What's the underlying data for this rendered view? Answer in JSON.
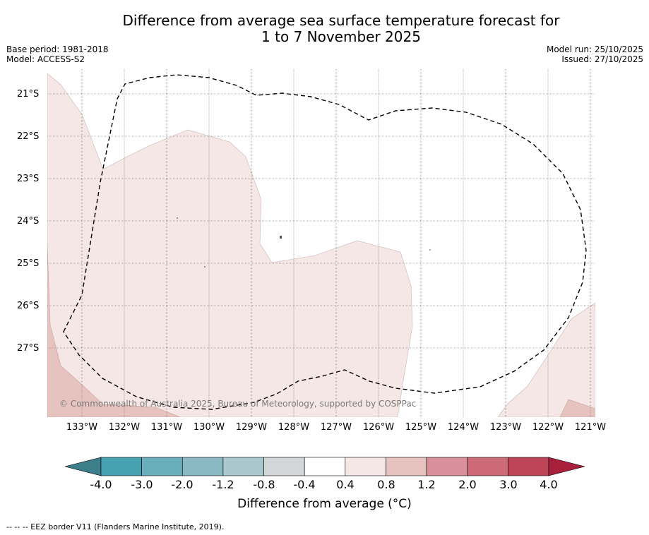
{
  "title": {
    "line1": "Difference from average sea surface temperature forecast for",
    "line2": "1 to 7 November 2025"
  },
  "meta": {
    "base_period": "Base period: 1981-2018",
    "model": "Model: ACCESS-S2",
    "model_run": "Model run: 25/10/2025",
    "issued": "Issued: 27/10/2025"
  },
  "latitude_labels": [
    "21°S",
    "22°S",
    "23°S",
    "24°S",
    "25°S",
    "26°S",
    "27°S"
  ],
  "longitude_labels": [
    "133°W",
    "132°W",
    "131°W",
    "130°W",
    "129°W",
    "128°W",
    "127°W",
    "126°W",
    "125°W",
    "124°W",
    "123°W",
    "122°W",
    "121°W"
  ],
  "copyright": "© Commonwealth of Australia 2025, Bureau of Meteorology, supported by COSPPac",
  "colorbar": {
    "label": "Difference from average (°C)",
    "ticks": [
      "-4.0",
      "-3.0",
      "-2.0",
      "-1.2",
      "-0.8",
      "-0.4",
      "0.4",
      "0.8",
      "1.2",
      "2.0",
      "3.0",
      "4.0"
    ],
    "under_color": "#3c7f8b",
    "colors": [
      "#46a1b1",
      "#6aadbb",
      "#8ab8c3",
      "#a9c7cc",
      "#d2d6d8",
      "#ffffff",
      "#f5e7e6",
      "#e7c3bf",
      "#d9909a",
      "#cc6b77",
      "#be4558"
    ],
    "over_color": "#a8203c"
  },
  "legend": {
    "eez": "--  --  -- EEZ border V11 (Flanders Marine Institute, 2019)."
  }
}
